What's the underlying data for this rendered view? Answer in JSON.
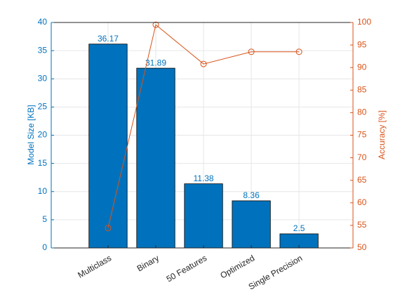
{
  "chart_data": {
    "type": "bar",
    "categories": [
      "Multiclass",
      "Binary",
      "50 Features",
      "Optimized",
      "Single Precision"
    ],
    "series": [
      {
        "type": "bar",
        "color": "#0072bd",
        "values": [
          36.17,
          31.89,
          11.38,
          8.36,
          2.5
        ]
      },
      {
        "type": "line",
        "axis": "y2",
        "color": "#d95319",
        "marker": "circle",
        "values": [
          54.4,
          99.5,
          90.8,
          93.5,
          93.5
        ]
      }
    ],
    "ylabel": "Model Size [KB]",
    "y2label": "Accuracy [%]",
    "ylim": [
      0,
      40
    ],
    "yticks": [
      0,
      5,
      10,
      15,
      20,
      25,
      30,
      35,
      40
    ],
    "y2lim": [
      50,
      100
    ],
    "y2ticks": [
      50,
      55,
      60,
      65,
      70,
      75,
      80,
      85,
      90,
      95,
      100
    ],
    "grid": true
  }
}
